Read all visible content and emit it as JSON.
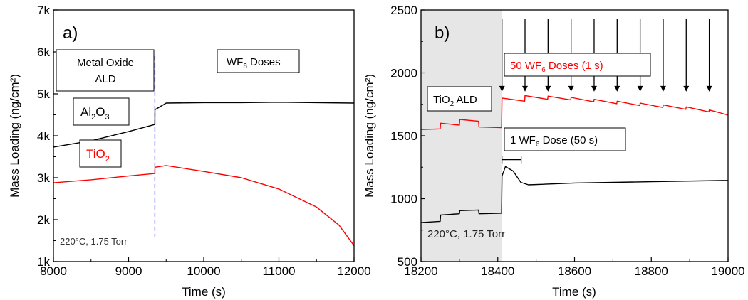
{
  "chart_data": [
    {
      "panel": "a)",
      "type": "line",
      "xlabel": "Time (s)",
      "ylabel": "Mass Loading (ng/cm²)",
      "xlim": [
        8000,
        12000
      ],
      "ylim": [
        1000,
        7000
      ],
      "xticks": [
        8000,
        9000,
        10000,
        11000,
        12000
      ],
      "xtick_labels": [
        "8000",
        "9000",
        "10000",
        "11000",
        "12000"
      ],
      "yticks": [
        1000,
        2000,
        3000,
        4000,
        5000,
        6000,
        7000
      ],
      "ytick_labels": [
        "1k",
        "2k",
        "3k",
        "4k",
        "5k",
        "6k",
        "7k"
      ],
      "grid": false,
      "series": [
        {
          "name": "Al₂O₃",
          "color": "#000000",
          "x": [
            8000,
            8500,
            9000,
            9350,
            9351,
            9500,
            10000,
            10500,
            11000,
            11500,
            12000
          ],
          "y": [
            3730,
            3880,
            4100,
            4270,
            4620,
            4780,
            4790,
            4790,
            4800,
            4790,
            4780
          ]
        },
        {
          "name": "TiO₂",
          "color": "#ff0000",
          "x": [
            8000,
            8500,
            9000,
            9350,
            9351,
            9500,
            10000,
            10500,
            11000,
            11500,
            11800,
            12000
          ],
          "y": [
            2880,
            2950,
            3040,
            3100,
            3250,
            3290,
            3150,
            3000,
            2730,
            2300,
            1870,
            1380
          ]
        }
      ],
      "divider_x": 9350,
      "divider_color": "#3333ff",
      "annotations": {
        "panel_label": "a)",
        "box_left_line1": "Metal Oxide",
        "box_left_line2": "ALD",
        "box_right_main": "WF",
        "box_right_sub": "6",
        "box_right_tail": " Doses",
        "al_main": "Al",
        "al_sub1": "2",
        "al_mid": "O",
        "al_sub2": "3",
        "ti_main": "TiO",
        "ti_sub": "2",
        "conditions": "220°C, 1.75 Torr"
      }
    },
    {
      "panel": "b)",
      "type": "line",
      "xlabel": "Time (s)",
      "ylabel": "Mass Loading (ng/cm²)",
      "xlim": [
        18200,
        19000
      ],
      "ylim": [
        500,
        2500
      ],
      "xticks": [
        18200,
        18400,
        18600,
        18800,
        19000
      ],
      "xtick_labels": [
        "18200",
        "18400",
        "18600",
        "18800",
        "19000"
      ],
      "yticks": [
        500,
        1000,
        1500,
        2000,
        2500
      ],
      "ytick_labels": [
        "500",
        "1000",
        "1500",
        "2000",
        "2500"
      ],
      "grid": false,
      "shaded_region": [
        18200,
        18410
      ],
      "shade_color": "#e6e6e6",
      "series": [
        {
          "name": "50 WF₆ Doses (1 s)",
          "color": "#ff0000",
          "x": [
            18200,
            18250,
            18251,
            18300,
            18301,
            18350,
            18351,
            18410,
            18411,
            18470,
            18471,
            18530,
            18531,
            18590,
            18591,
            18650,
            18651,
            18710,
            18711,
            18770,
            18771,
            18830,
            18831,
            18890,
            18891,
            18950,
            18951,
            19000
          ],
          "y": [
            1550,
            1555,
            1600,
            1585,
            1630,
            1615,
            1570,
            1565,
            1800,
            1775,
            1820,
            1790,
            1815,
            1785,
            1805,
            1770,
            1790,
            1755,
            1775,
            1740,
            1760,
            1725,
            1745,
            1710,
            1730,
            1690,
            1705,
            1665
          ]
        },
        {
          "name": "1 WF₆ Dose (50 s)",
          "color": "#000000",
          "x": [
            18200,
            18250,
            18251,
            18300,
            18301,
            18350,
            18351,
            18410,
            18411,
            18420,
            18440,
            18460,
            18480,
            18600,
            18800,
            19000
          ],
          "y": [
            810,
            820,
            870,
            880,
            905,
            910,
            880,
            885,
            1180,
            1255,
            1220,
            1130,
            1110,
            1125,
            1135,
            1145
          ]
        }
      ],
      "dose_arrow_x": [
        18411,
        18471,
        18531,
        18591,
        18651,
        18711,
        18771,
        18831,
        18891,
        18951
      ],
      "bracket_x": [
        18411,
        18461
      ],
      "bracket_y": 1310,
      "annotations": {
        "panel_label": "b)",
        "box_ald": "TiO",
        "box_ald_sub": "2",
        "box_ald_tail": " ALD",
        "red_label_pre": "50 WF",
        "red_label_sub": "6",
        "red_label_tail": " Doses (1 s)",
        "black_label_pre": "1 WF",
        "black_label_sub": "6",
        "black_label_tail": " Dose (50 s)",
        "conditions": "220°C, 1.75 Torr"
      }
    }
  ]
}
